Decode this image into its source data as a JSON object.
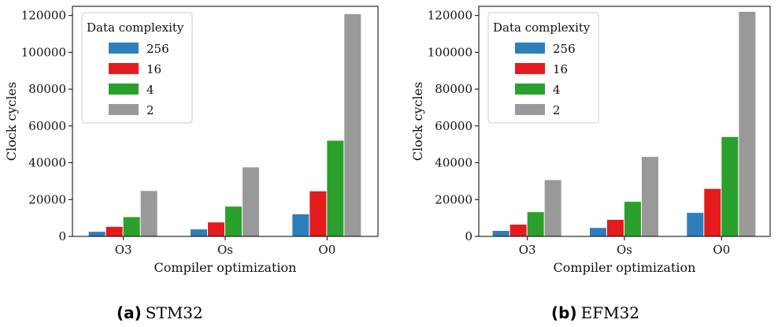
{
  "chart_data": [
    {
      "type": "bar",
      "categories": [
        "O3",
        "Os",
        "O0"
      ],
      "xlabel": "Compiler optimization",
      "ylabel": "Clock cycles",
      "ylim": [
        0,
        125000
      ],
      "yticks": [
        0,
        20000,
        40000,
        60000,
        80000,
        100000,
        120000
      ],
      "legend_title": "Data complexity",
      "legend_position": "top-left",
      "series": [
        {
          "name": "256",
          "color": "#2f7ebc",
          "values": [
            2500,
            3800,
            12000
          ]
        },
        {
          "name": "16",
          "color": "#e41a1c",
          "values": [
            5200,
            7600,
            24500
          ]
        },
        {
          "name": "4",
          "color": "#2ca02c",
          "values": [
            10500,
            16200,
            52000
          ]
        },
        {
          "name": "2",
          "color": "#999999",
          "values": [
            24700,
            37500,
            120800
          ]
        }
      ],
      "caption_tag": "(a)",
      "caption": "STM32"
    },
    {
      "type": "bar",
      "categories": [
        "O3",
        "Os",
        "O0"
      ],
      "xlabel": "Compiler optimization",
      "ylabel": "Clock cycles",
      "ylim": [
        0,
        125000
      ],
      "yticks": [
        0,
        20000,
        40000,
        60000,
        80000,
        100000,
        120000
      ],
      "legend_title": "Data complexity",
      "legend_position": "top-left",
      "series": [
        {
          "name": "256",
          "color": "#2f7ebc",
          "values": [
            3000,
            4600,
            12800
          ]
        },
        {
          "name": "16",
          "color": "#e41a1c",
          "values": [
            6400,
            9000,
            25800
          ]
        },
        {
          "name": "4",
          "color": "#2ca02c",
          "values": [
            13200,
            18800,
            54000
          ]
        },
        {
          "name": "2",
          "color": "#999999",
          "values": [
            30600,
            43200,
            122000
          ]
        }
      ],
      "caption_tag": "(b)",
      "caption": "EFM32"
    }
  ]
}
